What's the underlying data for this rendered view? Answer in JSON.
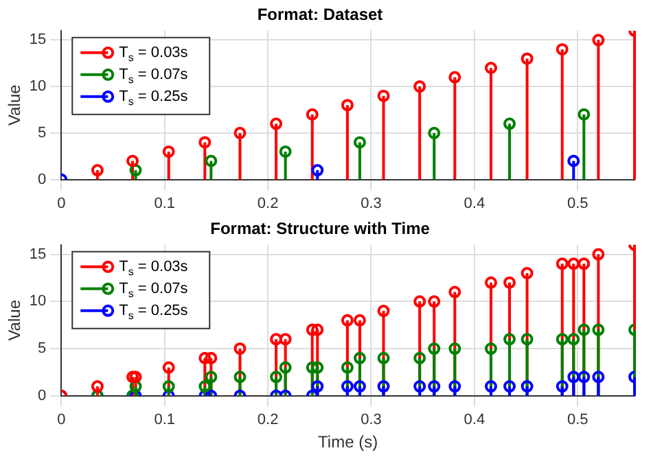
{
  "chart_data": [
    {
      "type": "lollipop",
      "title": "Format: Dataset",
      "ylabel": "Value",
      "xlim": [
        0,
        0.555
      ],
      "xticks": [
        0,
        0.1,
        0.2,
        0.3,
        0.4,
        0.5
      ],
      "ylim": [
        0,
        16
      ],
      "yticks": [
        0,
        5,
        10,
        15
      ],
      "grid": true,
      "legend": "top left",
      "marker": "circle",
      "line_style": "solid",
      "series": [
        {
          "name": "T$_{s}$ = 0.03s",
          "color": "#ff0000",
          "x": [
            0.035,
            0.069,
            0.104,
            0.139,
            0.173,
            0.208,
            0.243,
            0.277,
            0.312,
            0.347,
            0.381,
            0.416,
            0.451,
            0.485,
            0.52,
            0.555
          ],
          "values": [
            1,
            2,
            3,
            4,
            5,
            6,
            7,
            8,
            9,
            10,
            11,
            12,
            13,
            14,
            15,
            16
          ]
        },
        {
          "name": "T$_{s}$ = 0.07s",
          "color": "#008000",
          "x": [
            0.072,
            0.145,
            0.217,
            0.289,
            0.361,
            0.434,
            0.506
          ],
          "values": [
            1,
            2,
            3,
            4,
            5,
            6,
            7
          ]
        },
        {
          "name": "T$_{s}$ = 0.25s",
          "color": "#0000ff",
          "x": [
            0,
            0.248,
            0.496
          ],
          "values": [
            0,
            1,
            2
          ]
        }
      ]
    },
    {
      "type": "lollipop",
      "title": "Format: Structure with Time",
      "xlabel": "Time (s)",
      "ylabel": "Value",
      "xlim": [
        0,
        0.555
      ],
      "xticks": [
        0,
        0.1,
        0.2,
        0.3,
        0.4,
        0.5
      ],
      "ylim": [
        0,
        16
      ],
      "yticks": [
        0,
        5,
        10,
        15
      ],
      "grid": true,
      "legend": "top left",
      "marker": "circle",
      "line_style": "solid",
      "x": [
        0,
        0.035,
        0.069,
        0.072,
        0.104,
        0.139,
        0.145,
        0.173,
        0.208,
        0.217,
        0.243,
        0.248,
        0.277,
        0.289,
        0.312,
        0.347,
        0.361,
        0.381,
        0.416,
        0.434,
        0.451,
        0.485,
        0.496,
        0.506,
        0.52,
        0.555
      ],
      "series": [
        {
          "name": "T$_{s}$ = 0.03s",
          "color": "#ff0000",
          "values": [
            0,
            1,
            2,
            2,
            3,
            4,
            4,
            5,
            6,
            6,
            7,
            7,
            8,
            8,
            9,
            10,
            10,
            11,
            12,
            12,
            13,
            14,
            14,
            14,
            15,
            16
          ]
        },
        {
          "name": "T$_{s}$ = 0.07s",
          "color": "#008000",
          "values": [
            0,
            0,
            0,
            1,
            1,
            1,
            2,
            2,
            2,
            3,
            3,
            3,
            3,
            4,
            4,
            4,
            5,
            5,
            5,
            6,
            6,
            6,
            6,
            7,
            7,
            7
          ]
        },
        {
          "name": "T$_{s}$ = 0.25s",
          "color": "#0000ff",
          "values": [
            0,
            0,
            0,
            0,
            0,
            0,
            0,
            0,
            0,
            0,
            0,
            1,
            1,
            1,
            1,
            1,
            1,
            1,
            1,
            1,
            1,
            1,
            2,
            2,
            2,
            2
          ]
        }
      ]
    }
  ]
}
